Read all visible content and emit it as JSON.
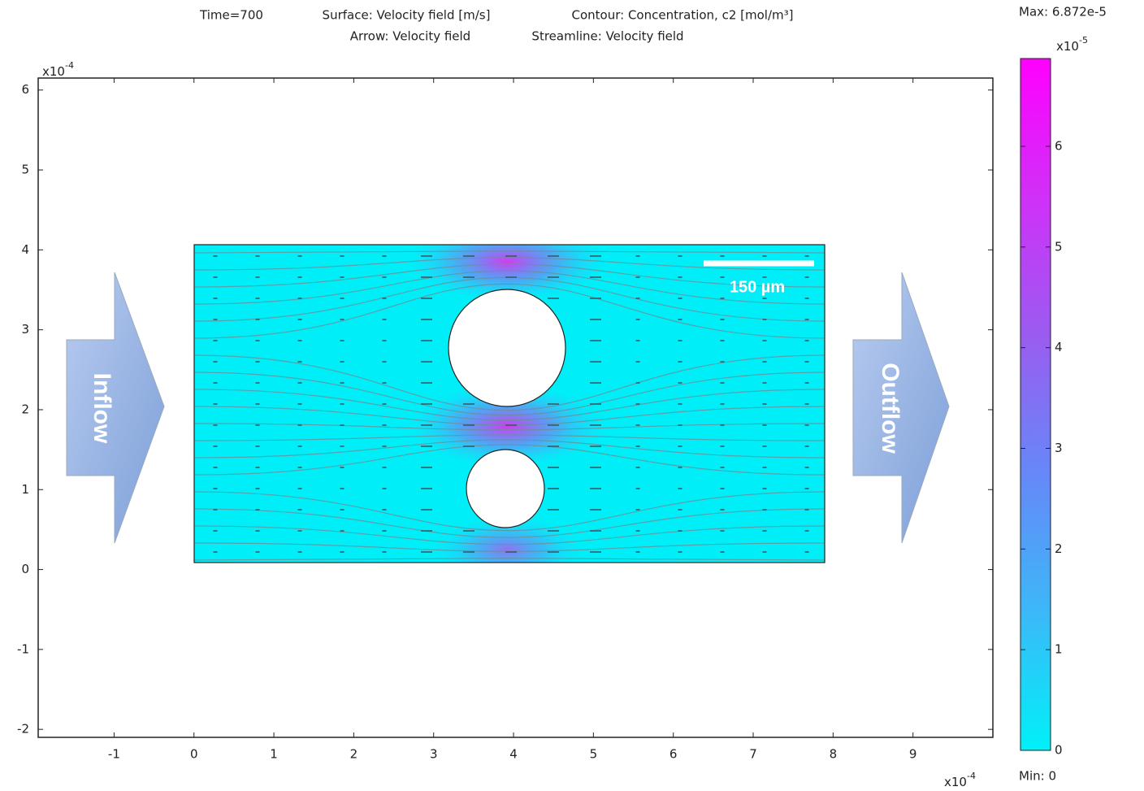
{
  "chart_data": {
    "type": "field",
    "title": {
      "time": "Time=700",
      "surface": "Surface: Velocity field [m/s]",
      "contour": "Contour: Concentration, c2 [mol/m³]",
      "arrow": "Arrow: Velocity field",
      "streamline": "Streamline: Velocity field"
    },
    "xlim": [
      -1.95,
      10
    ],
    "ylim": [
      -2.1,
      6.15
    ],
    "xticks": [
      -1,
      0,
      1,
      2,
      3,
      4,
      5,
      6,
      7,
      8,
      9
    ],
    "yticks": [
      -2,
      -1,
      0,
      1,
      2,
      3,
      4,
      5,
      6
    ],
    "x_scale": {
      "base": "x10",
      "exponent": "-4"
    },
    "y_scale": {
      "base": "x10",
      "exponent": "-4"
    },
    "colorbar": {
      "lim": [
        0,
        6.872
      ],
      "ticks": [
        0,
        1,
        2,
        3,
        4,
        5,
        6
      ],
      "scale": {
        "base": "x10",
        "exponent": "-5"
      },
      "max_label": "Max: 6.872e-5",
      "min_label": "Min: 0",
      "colormap": [
        "#00f0f8",
        "#3cb8f8",
        "#6688f8",
        "#9a5cf0",
        "#d030f8",
        "#ff00ff"
      ]
    },
    "annotations": {
      "inflow": "Inflow",
      "outflow": "Outflow",
      "scale_bar": "150 µm"
    }
  }
}
